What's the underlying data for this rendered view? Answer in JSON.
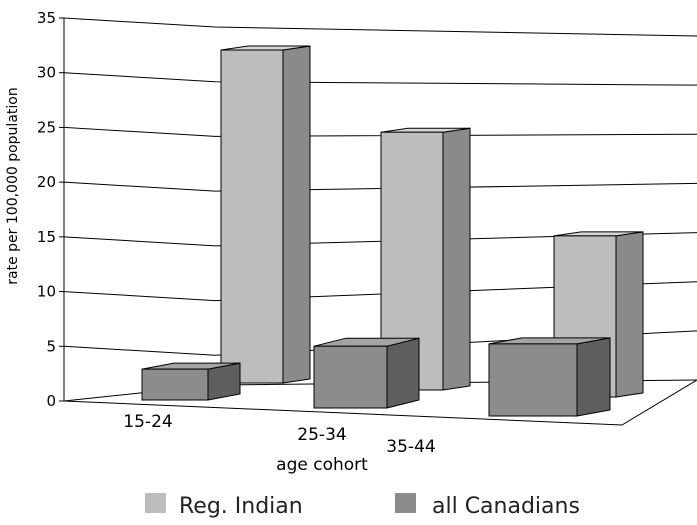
{
  "chart_data": {
    "type": "bar",
    "title": "",
    "xlabel": "age cohort",
    "ylabel": "rate per 100,000 population",
    "categories": [
      "15-24",
      "25-34",
      "35-44"
    ],
    "series": [
      {
        "name": "Reg. Indian",
        "values": [
          31,
          24,
          15
        ],
        "color": "#bdbdbd"
      },
      {
        "name": "all Canadians",
        "values": [
          3,
          6,
          7
        ],
        "color": "#8c8c8c"
      }
    ],
    "ylim": [
      0,
      35
    ],
    "yticks": [
      "0",
      "5",
      "10",
      "15",
      "20",
      "25",
      "30",
      "35"
    ],
    "grid": true,
    "legend": "bottom",
    "style": "3d"
  }
}
